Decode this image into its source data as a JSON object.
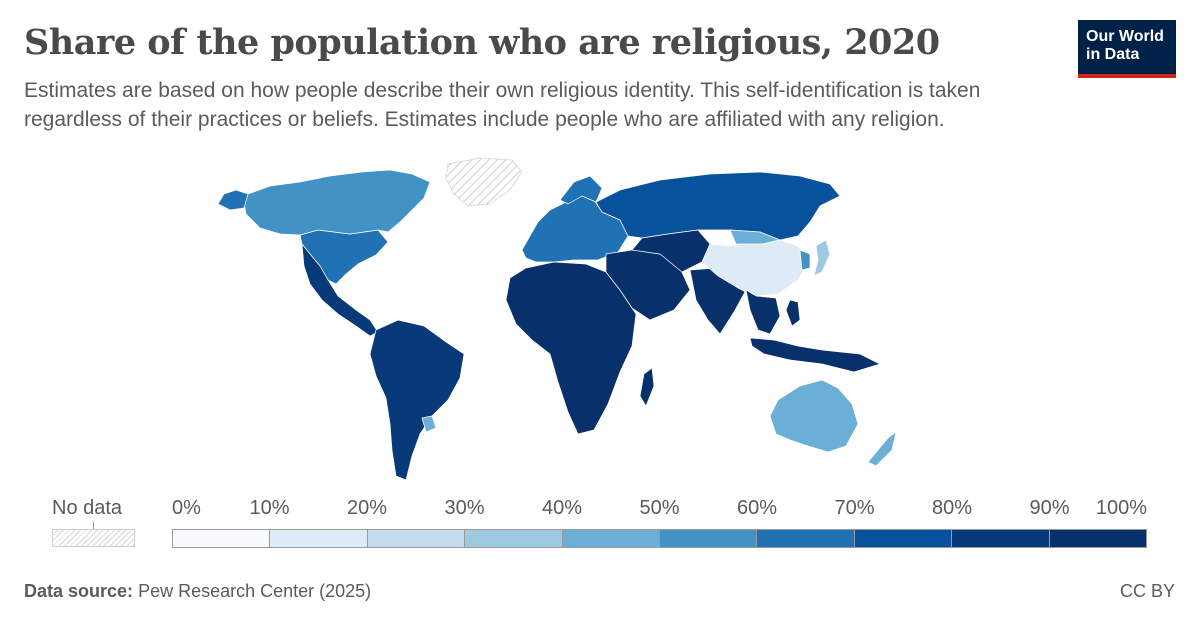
{
  "header": {
    "title": "Share of the population who are religious, 2020",
    "subtitle": "Estimates are based on how people describe their own religious identity. This self-identification is taken regardless of their practices or beliefs. Estimates include people who are affiliated with any religion."
  },
  "logo": {
    "line1": "Our World",
    "line2": "in Data"
  },
  "colors": {
    "no_data": "#e6e6e6",
    "bins": [
      "#f7fbff",
      "#deebf7",
      "#c6dbef",
      "#9ecae1",
      "#6baed6",
      "#4292c6",
      "#2171b5",
      "#08519c",
      "#083a7a",
      "#08306b"
    ]
  },
  "map": {
    "regions": [
      {
        "name": "North America",
        "bin": 6
      },
      {
        "name": "Canada",
        "bin": 5
      },
      {
        "name": "Greenland",
        "bin": -1
      },
      {
        "name": "Central America",
        "bin": 8
      },
      {
        "name": "South America",
        "bin": 8
      },
      {
        "name": "Uruguay",
        "bin": 4
      },
      {
        "name": "Europe",
        "bin": 6
      },
      {
        "name": "Russia",
        "bin": 7
      },
      {
        "name": "Africa",
        "bin": 9
      },
      {
        "name": "Middle East",
        "bin": 9
      },
      {
        "name": "Central Asia",
        "bin": 9
      },
      {
        "name": "India",
        "bin": 9
      },
      {
        "name": "Southeast Asia",
        "bin": 9
      },
      {
        "name": "China",
        "bin": 1
      },
      {
        "name": "Mongolia",
        "bin": 4
      },
      {
        "name": "Japan",
        "bin": 3
      },
      {
        "name": "Korea",
        "bin": 5
      },
      {
        "name": "Indonesia",
        "bin": 9
      },
      {
        "name": "Australia",
        "bin": 4
      },
      {
        "name": "New Zealand",
        "bin": 4
      }
    ]
  },
  "legend": {
    "no_data_label": "No data",
    "ticks": [
      "0%",
      "10%",
      "20%",
      "30%",
      "40%",
      "50%",
      "60%",
      "70%",
      "80%",
      "90%",
      "100%"
    ]
  },
  "footer": {
    "source_label": "Data source:",
    "source_text": "Pew Research Center (2025)",
    "license": "CC BY"
  }
}
